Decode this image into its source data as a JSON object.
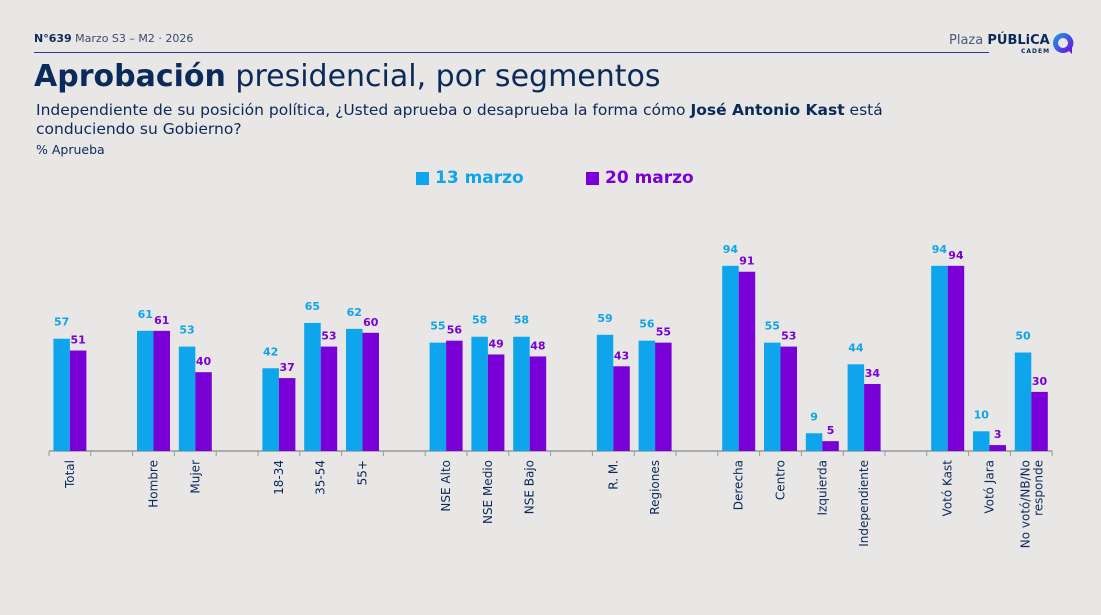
{
  "header": {
    "issue": "N°639",
    "period": "Marzo S3 – M2 · 2026",
    "brand_light": "Plaza",
    "brand_bold": "PÚBLiCA",
    "brand_sub": "CADEM"
  },
  "title": {
    "bold": "Aprobación",
    "rest": " presidencial, por segmentos"
  },
  "subtitle": {
    "pre": "Independiente de su posición política, ¿Usted aprueba o desaprueba la forma cómo ",
    "bold": "José Antonio Kast",
    "post": " está conduciendo su Gobierno?"
  },
  "unit_label": "% Aprueba",
  "colors": {
    "series1": "#0ea5ec",
    "series2": "#7a00d8",
    "text": "#0b2a5c",
    "axis": "#9a9a9a"
  },
  "chart_data": {
    "type": "bar",
    "title": "Aprobación presidencial, por segmentos",
    "ylabel": "% Aprueba",
    "xlabel": "",
    "ylim": [
      0,
      100
    ],
    "grid": false,
    "legend_position": "top-center",
    "categories": [
      "Total",
      "",
      "Hombre",
      "Mujer",
      "",
      "18-34",
      "35-54",
      "55+",
      "",
      "NSE Alto",
      "NSE Medio",
      "NSE Bajo",
      "",
      "R. M.",
      "Regiones",
      "",
      "Derecha",
      "Centro",
      "Izquierda",
      "Independiente",
      "",
      "Votó Kast",
      "Votó Jara",
      "No votó/NB/No responde"
    ],
    "series": [
      {
        "name": "13 marzo",
        "color": "#0ea5ec",
        "values": [
          57,
          null,
          61,
          53,
          null,
          42,
          65,
          62,
          null,
          55,
          58,
          58,
          null,
          59,
          56,
          null,
          94,
          55,
          9,
          44,
          null,
          94,
          10,
          50
        ]
      },
      {
        "name": "20 marzo",
        "color": "#7a00d8",
        "values": [
          51,
          null,
          61,
          40,
          null,
          37,
          53,
          60,
          null,
          56,
          49,
          48,
          null,
          43,
          55,
          null,
          91,
          53,
          5,
          34,
          null,
          94,
          3,
          30
        ]
      }
    ]
  }
}
